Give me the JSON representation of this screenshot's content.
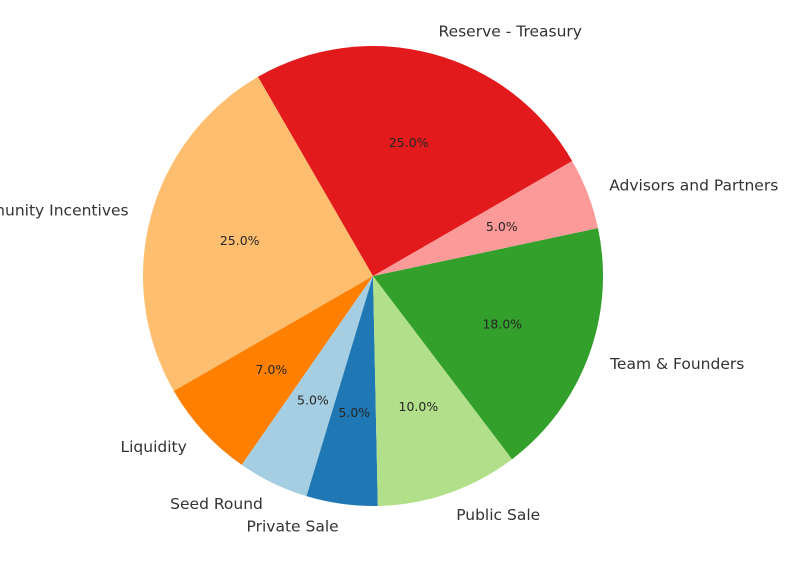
{
  "chart_data": {
    "type": "pie",
    "title": "",
    "start_angle_deg": 120,
    "direction": "counterclockwise",
    "slices": [
      {
        "label": "Ecosystem and Community Incentives",
        "value": 25.0,
        "pct_label": "25.0%",
        "color": "#fdbf6f"
      },
      {
        "label": "Liquidity",
        "value": 7.0,
        "pct_label": "7.0%",
        "color": "#ff7f00"
      },
      {
        "label": "Seed Round",
        "value": 5.0,
        "pct_label": "5.0%",
        "color": "#a6cee3"
      },
      {
        "label": "Private Sale",
        "value": 5.0,
        "pct_label": "5.0%",
        "color": "#1f78b4"
      },
      {
        "label": "Public Sale",
        "value": 10.0,
        "pct_label": "10.0%",
        "color": "#b2df8a"
      },
      {
        "label": "Team & Founders",
        "value": 18.0,
        "pct_label": "18.0%",
        "color": "#33a02c"
      },
      {
        "label": "Advisors and Partners",
        "value": 5.0,
        "pct_label": "5.0%",
        "color": "#fb9a99"
      },
      {
        "label": "Reserve - Treasury",
        "value": 25.0,
        "pct_label": "25.0%",
        "color": "#e31a1c"
      }
    ]
  }
}
